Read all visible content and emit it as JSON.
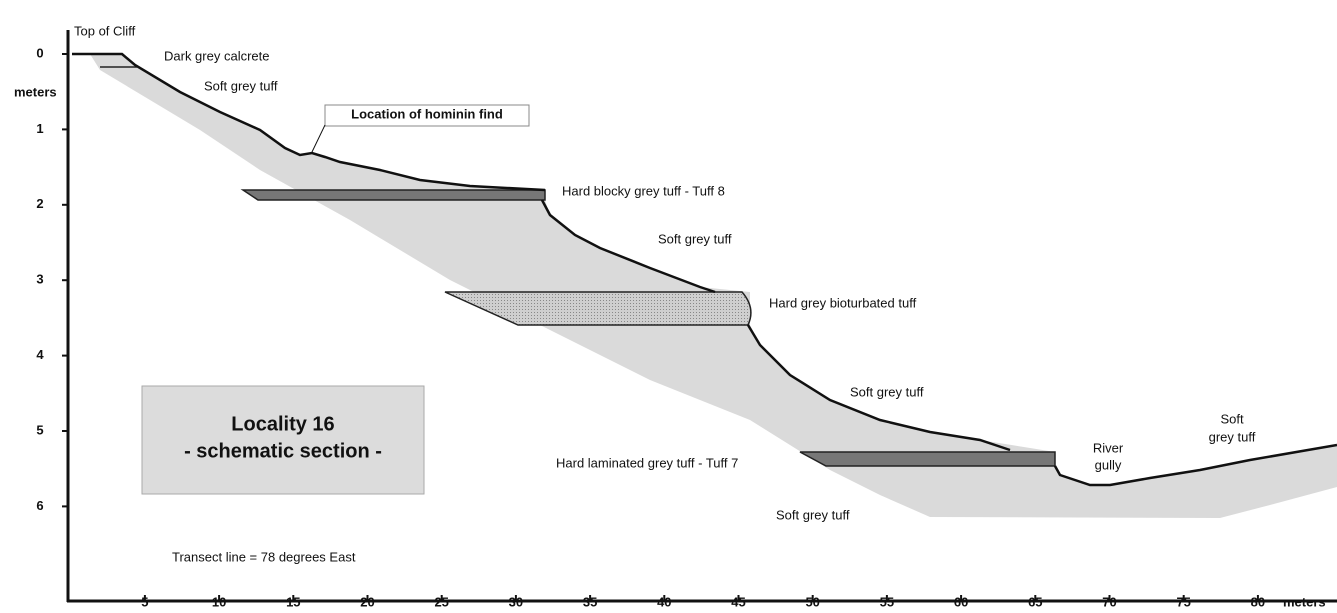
{
  "axes": {
    "y_label": "meters",
    "x_label": "meters",
    "yticks": [
      0,
      1,
      2,
      3,
      4,
      5,
      6
    ],
    "xticks": [
      5,
      10,
      15,
      20,
      25,
      30,
      35,
      40,
      45,
      50,
      55,
      60,
      65,
      70,
      75,
      80
    ]
  },
  "title_box": {
    "line1": "Locality 16",
    "line2": "- schematic section -"
  },
  "find_label": "Location of hominin find",
  "labels": [
    "Top of Cliff",
    "Dark grey calcrete",
    "Soft grey tuff",
    "Hard blocky grey tuff - Tuff 8",
    "Soft grey tuff",
    "Hard grey bioturbated tuff",
    "Soft grey tuff",
    "Hard laminated grey tuff - Tuff 7",
    "River",
    "gully",
    "Soft",
    "grey tuff",
    "Soft grey tuff"
  ],
  "note": "Transect line = 78 degrees East"
}
